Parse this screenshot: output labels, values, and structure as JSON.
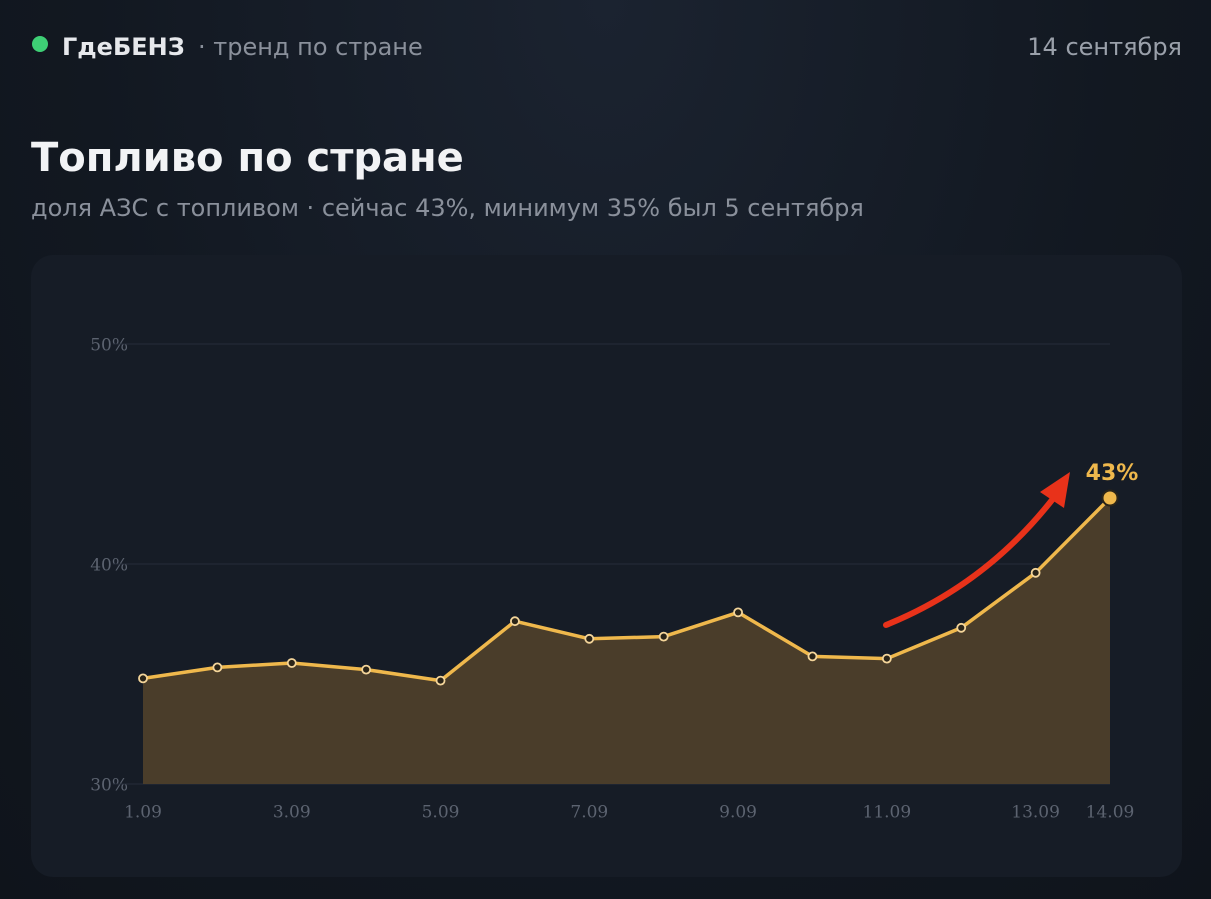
{
  "header": {
    "brand": "ГдеБЕНЗ",
    "tag": "· тренд по стране",
    "date": "14 сентября"
  },
  "chart_data": {
    "type": "line",
    "title": "Топливо по стране",
    "subtitle": "доля АЗС с топливом · сейчас 43%, минимум 35% был 5 сентября",
    "categories": [
      "1.09",
      null,
      "3.09",
      null,
      "5.09",
      null,
      "7.09",
      null,
      "9.09",
      null,
      "11.09",
      null,
      "13.09",
      "14.09"
    ],
    "values": [
      34.8,
      35.3,
      35.5,
      35.2,
      34.7,
      37.4,
      36.6,
      36.7,
      37.8,
      35.8,
      35.7,
      37.1,
      39.6,
      43.0
    ],
    "value_labels": [
      null,
      null,
      null,
      null,
      null,
      null,
      null,
      null,
      null,
      null,
      null,
      null,
      null,
      "43%"
    ],
    "color": "#efb84c",
    "area_color": "#4a3d2a",
    "ylim": [
      30,
      50
    ],
    "yticks": [
      {
        "value": 30,
        "label": "30%"
      },
      {
        "value": 40,
        "label": "40%"
      },
      {
        "value": 50,
        "label": "50%"
      }
    ],
    "grid": true
  }
}
